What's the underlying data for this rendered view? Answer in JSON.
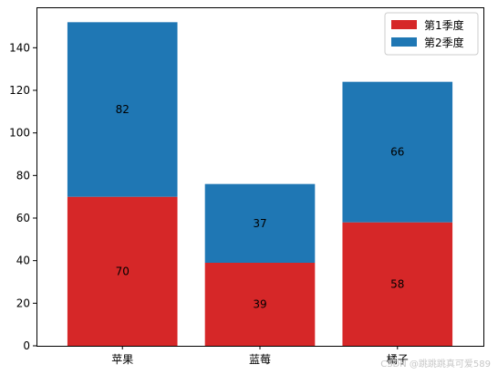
{
  "chart_data": {
    "type": "bar",
    "stacked": true,
    "categories": [
      "苹果",
      "蓝莓",
      "橘子"
    ],
    "series": [
      {
        "name": "第1季度",
        "values": [
          70,
          39,
          58
        ],
        "color": "#d62728"
      },
      {
        "name": "第2季度",
        "values": [
          82,
          37,
          66
        ],
        "color": "#1f77b4"
      }
    ],
    "ylim": [
      0,
      159
    ],
    "yticks": [
      0,
      20,
      40,
      60,
      80,
      100,
      120,
      140
    ],
    "title": "",
    "xlabel": "",
    "ylabel": "",
    "legend_position": "top-right",
    "grid": false,
    "data_labels": "centered in each segment"
  },
  "watermark": "CSDN @跳跳跳真可爱589"
}
